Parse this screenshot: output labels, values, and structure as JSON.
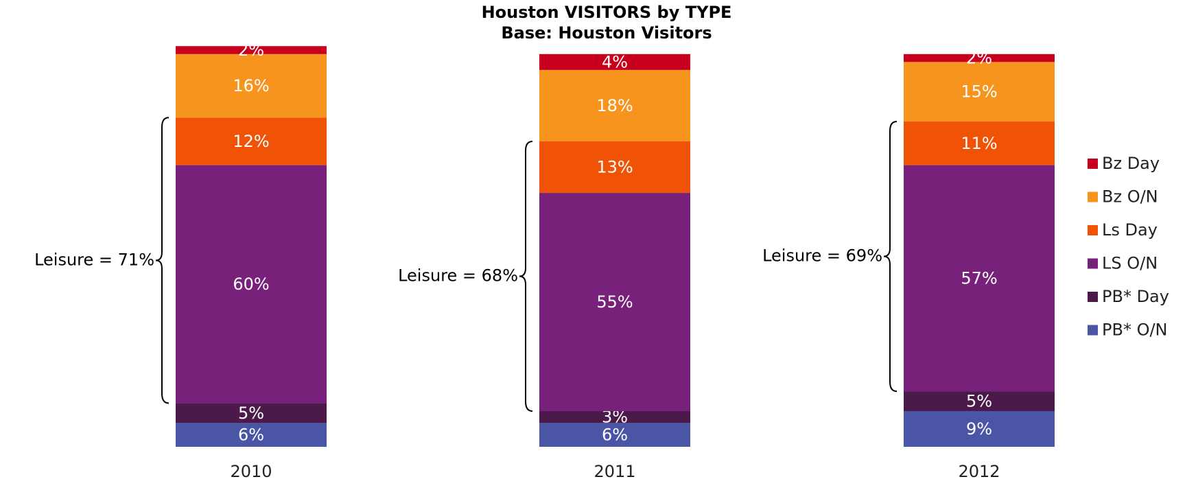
{
  "chart_data": {
    "type": "stacked_bar",
    "title": "Houston VISITORS by TYPE",
    "subtitle": "Base:  Houston Visitors",
    "categories": [
      "2010",
      "2011",
      "2012"
    ],
    "ylim": [
      0,
      100
    ],
    "legend": "right",
    "series": [
      {
        "name": "Bz Day",
        "color": "#c8001e",
        "values": [
          2,
          4,
          2
        ],
        "value_labels": [
          "2%",
          "4%",
          "2%"
        ]
      },
      {
        "name": "Bz O/N",
        "color": "#f7941d",
        "values": [
          16,
          18,
          15
        ],
        "value_labels": [
          "16%",
          "18%",
          "15%"
        ]
      },
      {
        "name": "Ls Day",
        "color": "#f15306",
        "values": [
          12,
          13,
          11
        ],
        "value_labels": [
          "12%",
          "13%",
          "11%"
        ]
      },
      {
        "name": "LS O/N",
        "color": "#77217a",
        "values": [
          60,
          55,
          57
        ],
        "value_labels": [
          "60%",
          "55%",
          "57%"
        ]
      },
      {
        "name": "PB* Day",
        "color": "#4b1a4b",
        "values": [
          5,
          3,
          5
        ],
        "value_labels": [
          "5%",
          "3%",
          "5%"
        ]
      },
      {
        "name": "PB* O/N",
        "color": "#4a55a6",
        "values": [
          6,
          6,
          9
        ],
        "value_labels": [
          "6%",
          "6%",
          "9%"
        ]
      }
    ],
    "annotations": [
      "Leisure = 71%",
      "Leisure = 68%",
      "Leisure = 69%"
    ]
  }
}
